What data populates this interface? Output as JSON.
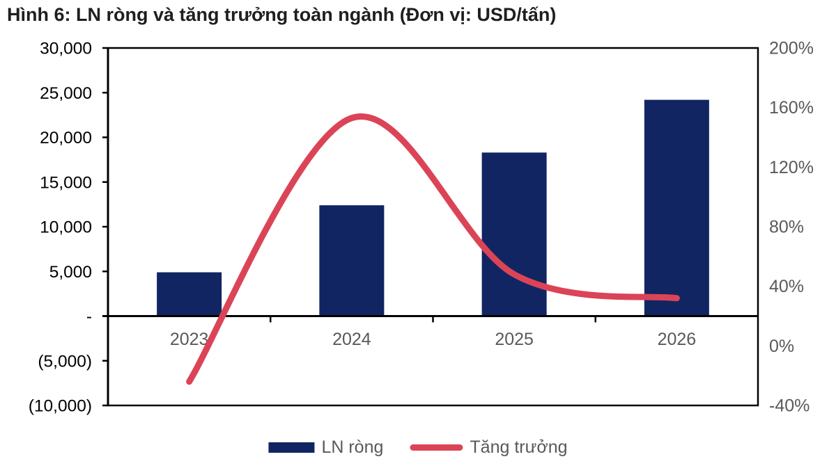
{
  "chart_data": {
    "type": "bar",
    "subtype": "combo-bar-line-dual-axis",
    "title": "Hình 6: LN ròng và tăng trưởng toàn ngành (Đơn vị: USD/tấn)",
    "categories": [
      "2023",
      "2024",
      "2025",
      "2026"
    ],
    "series": [
      {
        "name": "LN ròng",
        "type": "bar",
        "axis": "left",
        "values": [
          4900,
          12400,
          18300,
          24200
        ],
        "color": "#112562"
      },
      {
        "name": "Tăng trưởng",
        "type": "line",
        "axis": "right",
        "unit": "%",
        "values": [
          -24,
          153,
          48,
          32
        ],
        "color": "#DB4457"
      }
    ],
    "left_axis": {
      "min": -10000,
      "max": 30000,
      "step": 5000,
      "tick_labels": [
        "30,000",
        "25,000",
        "20,000",
        "15,000",
        "10,000",
        "5,000",
        "-",
        "(5,000)",
        "(10,000)"
      ]
    },
    "right_axis": {
      "min": -40,
      "max": 200,
      "step": 40,
      "tick_labels": [
        "200%",
        "160%",
        "120%",
        "80%",
        "40%",
        "0%",
        "-40%"
      ]
    },
    "grid": false,
    "legend_position": "bottom",
    "line_smoothing": true
  },
  "colors": {
    "axis_line": "#000000",
    "left_tick_label": "#000000",
    "right_tick_label": "#595959",
    "category_label": "#595959",
    "legend_label": "#595959",
    "title": "#1f1f1f",
    "background": "#ffffff"
  }
}
